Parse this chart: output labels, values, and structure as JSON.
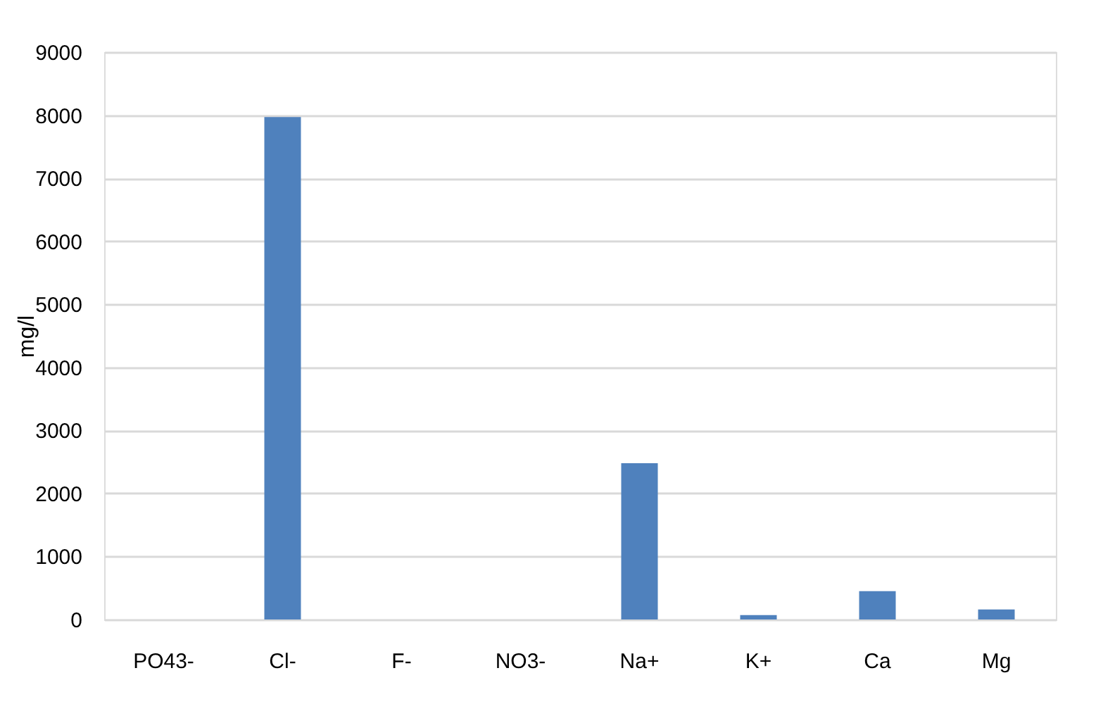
{
  "chart_data": {
    "type": "bar",
    "ylabel": "mg/l",
    "categories": [
      "PO43-",
      "Cl-",
      "F-",
      "NO3-",
      "Na+",
      "K+",
      "Ca",
      "Mg"
    ],
    "values": [
      0,
      7970,
      0,
      0,
      2480,
      70,
      450,
      160
    ],
    "color": "#4f81bd",
    "ylim": [
      0,
      9000
    ],
    "yticks": [
      0,
      1000,
      2000,
      3000,
      4000,
      5000,
      6000,
      7000,
      8000,
      9000
    ],
    "grid": "y"
  }
}
